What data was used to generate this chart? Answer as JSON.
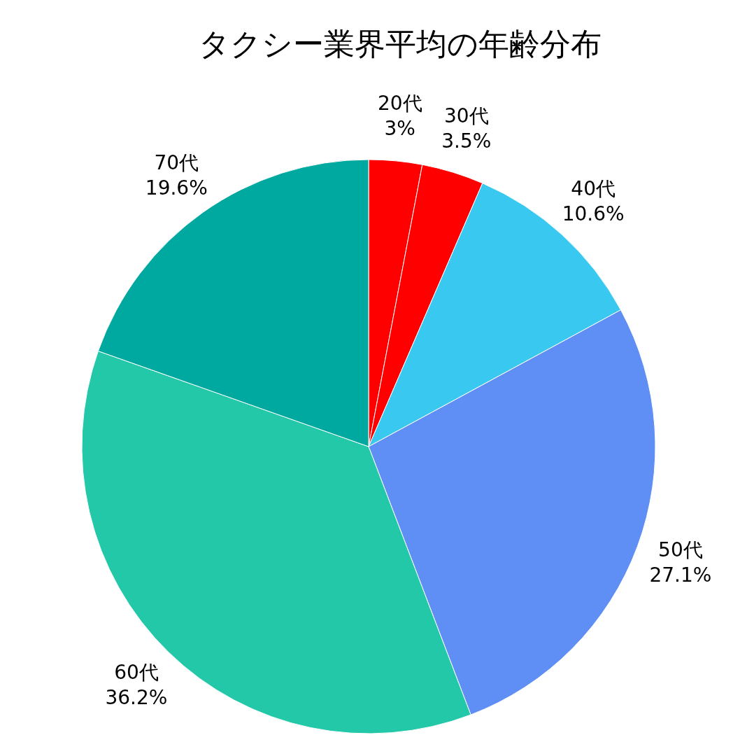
{
  "chart_data": {
    "type": "pie",
    "title": "タクシー業界平均の年齢分布",
    "categories": [
      "20代",
      "30代",
      "40代",
      "50代",
      "60代",
      "70代"
    ],
    "values": [
      3,
      3.5,
      10.6,
      27.1,
      36.2,
      19.6
    ],
    "value_labels": [
      "3%",
      "3.5%",
      "10.6%",
      "27.1%",
      "36.2%",
      "19.6%"
    ],
    "colors": [
      "#ff0000",
      "#ff0000",
      "#38c8f0",
      "#5f8ff5",
      "#23c8a8",
      "#00a9a0"
    ],
    "legend": false
  }
}
